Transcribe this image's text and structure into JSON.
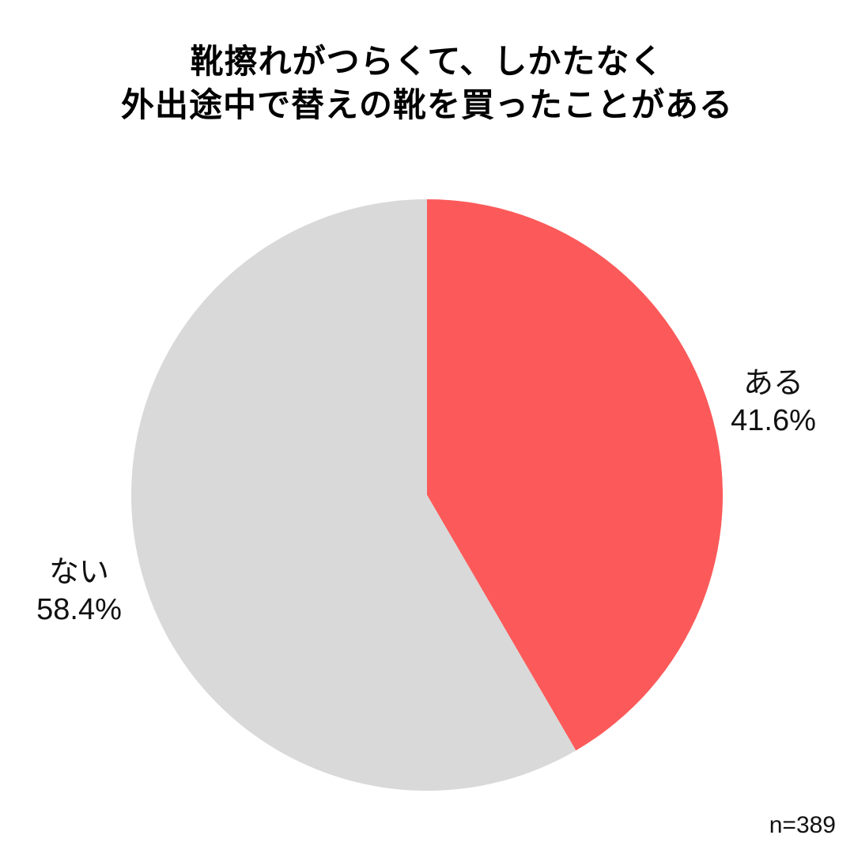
{
  "title": {
    "line1": "靴擦れがつらくて、しかたなく",
    "line2": "外出途中で替えの靴を買ったことがある"
  },
  "labels": {
    "aru": {
      "name": "ある",
      "percent": "41.6%"
    },
    "nai": {
      "name": "ない",
      "percent": "58.4%"
    }
  },
  "footnote": {
    "sample_size": "n=389"
  },
  "colors": {
    "slice_aru": "#FC5A5A",
    "slice_nai": "#D9D9D9",
    "text": "#111111",
    "title_text": "#000000",
    "background": "#FFFFFF"
  },
  "chart_data": {
    "type": "pie",
    "title": "靴擦れがつらくて、しかたなく外出途中で替えの靴を買ったことがある",
    "categories": [
      "ある",
      "ない"
    ],
    "values": [
      41.6,
      58.4
    ],
    "unit": "%",
    "colors": [
      "#FC5A5A",
      "#D9D9D9"
    ],
    "sample_size_label": "n=389",
    "start_angle": "top",
    "direction": "clockwise",
    "legend_position": "none",
    "label_style": "direct-labels-outside"
  }
}
